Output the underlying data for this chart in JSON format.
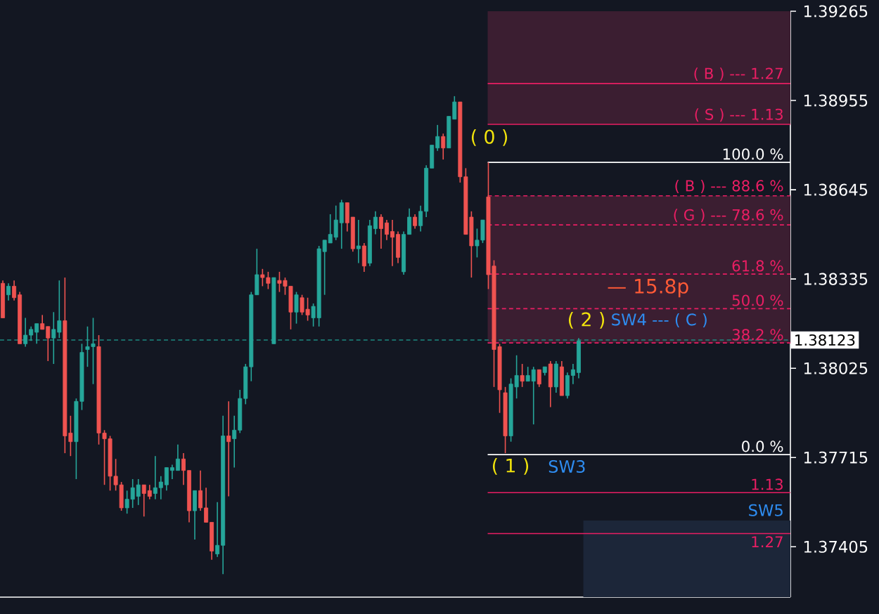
{
  "chart_data": {
    "type": "candlestick",
    "categories": [
      null,
      null,
      null,
      null,
      null,
      null,
      null,
      null,
      null,
      null,
      null,
      null,
      null,
      null,
      null,
      null,
      null,
      null,
      null,
      null,
      null,
      null,
      null,
      null,
      null,
      null,
      null,
      null,
      null,
      null,
      null,
      null,
      null,
      null,
      null,
      null,
      null,
      null,
      null,
      null,
      null,
      null,
      null,
      null,
      null,
      null,
      null,
      null,
      null,
      null,
      null,
      null,
      null,
      null,
      null,
      null,
      null,
      null,
      null,
      null,
      null,
      null,
      null,
      null,
      null,
      null,
      null,
      null,
      null,
      null,
      null,
      null,
      null,
      null,
      null,
      null,
      null,
      null,
      null,
      null,
      null,
      null,
      null,
      null,
      null,
      null,
      null,
      null,
      null,
      null,
      null,
      null,
      null,
      null,
      null,
      null,
      null,
      null,
      null,
      null,
      null,
      null,
      null,
      null,
      null,
      null,
      null,
      null,
      null,
      null,
      null,
      null,
      null,
      null,
      null,
      null,
      null,
      null,
      null,
      null,
      null,
      null,
      null,
      null,
      null,
      null,
      null,
      null,
      null,
      null,
      null,
      null,
      null,
      null,
      null,
      null,
      null,
      null,
      null,
      null
    ],
    "ohlc": [
      [
        1.3832,
        1.3833,
        1.382,
        1.382
      ],
      [
        1.3828,
        1.3832,
        1.3826,
        1.3831
      ],
      [
        1.3831,
        1.3833,
        1.3826,
        1.3827
      ],
      [
        1.3828,
        1.3829,
        1.3811,
        1.3811
      ],
      [
        1.3811,
        1.382,
        1.381,
        1.3814
      ],
      [
        1.3814,
        1.3817,
        1.3812,
        1.3816
      ],
      [
        1.3815,
        1.3818,
        1.3811,
        1.3818
      ],
      [
        1.3818,
        1.3821,
        1.3816,
        1.3816
      ],
      [
        1.3817,
        1.3817,
        1.3805,
        1.3813
      ],
      [
        1.3813,
        1.3822,
        1.3804,
        1.3816
      ],
      [
        1.3815,
        1.3833,
        1.3813,
        1.3819
      ],
      [
        1.3819,
        1.3834,
        1.3773,
        1.3779
      ],
      [
        1.378,
        1.3786,
        1.3772,
        1.3777
      ],
      [
        1.3777,
        1.3792,
        1.3764,
        1.3791
      ],
      [
        1.3791,
        1.3811,
        1.3788,
        1.3808
      ],
      [
        1.3809,
        1.3817,
        1.3803,
        1.381
      ],
      [
        1.381,
        1.382,
        1.3797,
        1.3811
      ],
      [
        1.381,
        1.3814,
        1.3776,
        1.378
      ],
      [
        1.378,
        1.3781,
        1.3762,
        1.3778
      ],
      [
        1.3778,
        1.3779,
        1.376,
        1.3765
      ],
      [
        1.3765,
        1.3771,
        1.376,
        1.3762
      ],
      [
        1.3762,
        1.3763,
        1.3753,
        1.3754
      ],
      [
        1.3754,
        1.376,
        1.3752,
        1.3757
      ],
      [
        1.3757,
        1.3764,
        1.3754,
        1.3761
      ],
      [
        1.3758,
        1.3764,
        1.3755,
        1.3762
      ],
      [
        1.3762,
        1.3762,
        1.3751,
        1.3759
      ],
      [
        1.376,
        1.3762,
        1.3757,
        1.3758
      ],
      [
        1.3759,
        1.3772,
        1.3757,
        1.3761
      ],
      [
        1.3761,
        1.3765,
        1.3757,
        1.3763
      ],
      [
        1.3762,
        1.3768,
        1.376,
        1.3768
      ],
      [
        1.3767,
        1.3769,
        1.3764,
        1.3768
      ],
      [
        1.3767,
        1.3776,
        1.3767,
        1.3771
      ],
      [
        1.3771,
        1.3773,
        1.3762,
        1.3767
      ],
      [
        1.3767,
        1.3767,
        1.3749,
        1.3753
      ],
      [
        1.3753,
        1.376,
        1.3743,
        1.376
      ],
      [
        1.376,
        1.3767,
        1.3753,
        1.3754
      ],
      [
        1.3754,
        1.3761,
        1.3749,
        1.3749
      ],
      [
        1.3749,
        1.3749,
        1.3736,
        1.3739
      ],
      [
        1.3738,
        1.3756,
        1.3737,
        1.3741
      ],
      [
        1.3741,
        1.3786,
        1.3731,
        1.3779
      ],
      [
        1.3779,
        1.3791,
        1.3758,
        1.3777
      ],
      [
        1.3778,
        1.3786,
        1.3768,
        1.3781
      ],
      [
        1.3781,
        1.3795,
        1.378,
        1.3792
      ],
      [
        1.3792,
        1.3804,
        1.379,
        1.3803
      ],
      [
        1.3803,
        1.3829,
        1.3798,
        1.3828
      ],
      [
        1.3828,
        1.3844,
        1.3828,
        1.3835
      ],
      [
        1.3835,
        1.3837,
        1.3831,
        1.3834
      ],
      [
        1.3834,
        1.3836,
        1.383,
        1.3832
      ],
      [
        1.3811,
        1.3834,
        1.3811,
        1.3834
      ],
      [
        1.3833,
        1.3836,
        1.3829,
        1.3832
      ],
      [
        1.3833,
        1.3834,
        1.3828,
        1.3831
      ],
      [
        1.3831,
        1.3831,
        1.3816,
        1.3822
      ],
      [
        1.3822,
        1.3829,
        1.3818,
        1.3828
      ],
      [
        1.3827,
        1.3828,
        1.3821,
        1.3822
      ],
      [
        1.3823,
        1.3827,
        1.3819,
        1.3821
      ],
      [
        1.382,
        1.3825,
        1.3817,
        1.3824
      ],
      [
        1.382,
        1.3845,
        1.3817,
        1.3844
      ],
      [
        1.3843,
        1.3847,
        1.3828,
        1.3847
      ],
      [
        1.3846,
        1.3856,
        1.3846,
        1.3849
      ],
      [
        1.3848,
        1.3859,
        1.3847,
        1.3854
      ],
      [
        1.3853,
        1.3861,
        1.3844,
        1.386
      ],
      [
        1.386,
        1.386,
        1.385,
        1.3853
      ],
      [
        1.3855,
        1.3855,
        1.3843,
        1.3844
      ],
      [
        1.3844,
        1.3854,
        1.3839,
        1.3845
      ],
      [
        1.3845,
        1.3846,
        1.3836,
        1.3838
      ],
      [
        1.3839,
        1.3854,
        1.3838,
        1.3852
      ],
      [
        1.3851,
        1.3857,
        1.3849,
        1.3855
      ],
      [
        1.3855,
        1.3856,
        1.3844,
        1.3851
      ],
      [
        1.3853,
        1.3854,
        1.3847,
        1.3849
      ],
      [
        1.385,
        1.3854,
        1.3838,
        1.3848
      ],
      [
        1.3849,
        1.385,
        1.3839,
        1.3841
      ],
      [
        1.3836,
        1.385,
        1.3835,
        1.3849
      ],
      [
        1.3849,
        1.3858,
        1.3849,
        1.3855
      ],
      [
        1.3855,
        1.3856,
        1.3851,
        1.3852
      ],
      [
        1.3852,
        1.3859,
        1.385,
        1.3857
      ],
      [
        1.3857,
        1.3873,
        1.3855,
        1.3872
      ],
      [
        1.3872,
        1.388,
        1.3872,
        1.388
      ],
      [
        1.3879,
        1.3887,
        1.3878,
        1.3883
      ],
      [
        1.3883,
        1.3884,
        1.3875,
        1.3879
      ],
      [
        1.3879,
        1.389,
        1.3879,
        1.389
      ],
      [
        1.3889,
        1.3897,
        1.3889,
        1.3895
      ],
      [
        1.3895,
        1.3895,
        1.3867,
        1.3869
      ],
      [
        1.3869,
        1.3872,
        1.3849,
        1.3849
      ],
      [
        1.3855,
        1.3857,
        1.3834,
        1.3845
      ],
      [
        1.3845,
        1.3851,
        1.3841,
        1.3847
      ],
      [
        1.3847,
        1.3854,
        1.3846,
        1.3854
      ],
      [
        1.3862,
        1.3874,
        1.383,
        1.3835
      ],
      [
        1.3838,
        1.384,
        1.3796,
        1.3809
      ],
      [
        1.381,
        1.3811,
        1.3787,
        1.3795
      ],
      [
        1.3794,
        1.3796,
        1.3773,
        1.3779
      ],
      [
        1.3779,
        1.3799,
        1.3777,
        1.3797
      ],
      [
        1.3796,
        1.3807,
        1.3792,
        1.38
      ],
      [
        1.38,
        1.3804,
        1.3796,
        1.3798
      ],
      [
        1.3798,
        1.3803,
        1.3798,
        1.38
      ],
      [
        1.3798,
        1.3803,
        1.3783,
        1.3802
      ],
      [
        1.3802,
        1.3802,
        1.3796,
        1.3797
      ],
      [
        1.3801,
        1.3803,
        1.38,
        1.3803
      ],
      [
        1.3804,
        1.3805,
        1.3789,
        1.3796
      ],
      [
        1.3796,
        1.3805,
        1.3794,
        1.3804
      ],
      [
        1.3803,
        1.3805,
        1.3793,
        1.3793
      ],
      [
        1.3793,
        1.3801,
        1.3792,
        1.38
      ],
      [
        1.38,
        1.3804,
        1.3797,
        1.3802
      ],
      [
        1.3801,
        1.3813,
        1.3799,
        1.3812
      ],
      null,
      null,
      null,
      null,
      null,
      null,
      null,
      null,
      null,
      null,
      null,
      null,
      null,
      null,
      null,
      null,
      null,
      null,
      null,
      null,
      null,
      null,
      null,
      null,
      null,
      null,
      null,
      null,
      null,
      null,
      null,
      null,
      null,
      null,
      null,
      null,
      null
    ],
    "colors": [
      "#ef5350",
      "#26a69a",
      "#ef5350",
      "#ef5350",
      "#26a69a",
      "#26a69a",
      "#26a69a",
      "#ef5350",
      "#ef5350",
      "#26a69a",
      "#26a69a",
      "#ef5350",
      "#ef5350",
      "#26a69a",
      "#26a69a",
      "#26a69a",
      "#26a69a",
      "#ef5350",
      "#ef5350",
      "#ef5350",
      "#ef5350",
      "#ef5350",
      "#26a69a",
      "#26a69a",
      "#26a69a",
      "#ef5350",
      "#ef5350",
      "#26a69a",
      "#26a69a",
      "#26a69a",
      "#26a69a",
      "#26a69a",
      "#ef5350",
      "#ef5350",
      "#26a69a",
      "#ef5350",
      "#ef5350",
      "#ef5350",
      "#26a69a",
      "#26a69a",
      "#ef5350",
      "#26a69a",
      "#26a69a",
      "#26a69a",
      "#26a69a",
      "#26a69a",
      "#ef5350",
      "#ef5350",
      "#26a69a",
      "#ef5350",
      "#ef5350",
      "#ef5350",
      "#26a69a",
      "#ef5350",
      "#ef5350",
      "#26a69a",
      "#26a69a",
      "#26a69a",
      "#26a69a",
      "#26a69a",
      "#26a69a",
      "#ef5350",
      "#ef5350",
      "#26a69a",
      "#ef5350",
      "#26a69a",
      "#26a69a",
      "#ef5350",
      "#ef5350",
      "#ef5350",
      "#ef5350",
      "#26a69a",
      "#26a69a",
      "#ef5350",
      "#26a69a",
      "#26a69a",
      "#26a69a",
      "#26a69a",
      "#ef5350",
      "#26a69a",
      "#26a69a",
      "#ef5350",
      "#ef5350",
      "#ef5350",
      "#26a69a",
      "#26a69a",
      "#ef5350",
      "#ef5350",
      "#ef5350",
      "#ef5350",
      "#26a69a",
      "#26a69a",
      "#ef5350",
      "#26a69a",
      "#26a69a",
      "#ef5350",
      "#26a69a",
      "#ef5350",
      "#26a69a",
      "#ef5350",
      "#26a69a",
      "#26a69a",
      "#26a69a",
      null,
      null,
      null,
      null,
      null,
      null,
      null,
      null,
      null,
      null,
      null,
      null,
      null,
      null,
      null,
      null,
      null,
      null,
      null,
      null,
      null,
      null,
      null,
      null,
      null,
      null,
      null,
      null,
      null,
      null,
      null,
      null,
      null,
      null,
      null,
      null,
      null
    ],
    "ylim": [
      1.3723,
      1.39265
    ],
    "yticks": [
      1.37405,
      1.37715,
      1.38025,
      1.38335,
      1.38645,
      1.38955,
      1.39265
    ],
    "tick_labels": "y",
    "bands": [
      {
        "axis": "y",
        "from": 1.38872,
        "to": 1.39265,
        "color": "#3b1e31"
      },
      {
        "axis": "y",
        "from": 1.38113,
        "to": 1.38624,
        "color": "#3b1e31"
      },
      {
        "axis": "y",
        "from": 1.3723,
        "to": 1.37496,
        "color": "#1c2639"
      }
    ],
    "ref_lines": [
      {
        "axis": "y",
        "value": 1.39014,
        "label": "( B )   --- 1.27",
        "color": "#e91e63"
      },
      {
        "axis": "y",
        "value": 1.38872,
        "label": "( S )   --- 1.13",
        "color": "#e91e63"
      },
      {
        "axis": "y",
        "value": 1.3874,
        "color": "#ffffff"
      },
      {
        "axis": "y",
        "value": 1.38624,
        "label": "( B ) --- 88.6 %",
        "color": "#e91e63",
        "line_style": "dashed"
      },
      {
        "axis": "y",
        "value": 1.38523,
        "label": "( G ) --- 78.6 %",
        "color": "#e91e63",
        "line_style": "dashed"
      },
      {
        "axis": "y",
        "value": 1.38352,
        "color": "#e91e63",
        "line_style": "dashed"
      },
      {
        "axis": "y",
        "value": 1.38232,
        "color": "#e91e63",
        "line_style": "dashed"
      },
      {
        "axis": "y",
        "value": 1.38113,
        "color": "#e91e63",
        "line_style": "dashed"
      },
      {
        "axis": "y",
        "value": 1.37725,
        "color": "#ffffff"
      },
      {
        "axis": "y",
        "value": 1.37593,
        "color": "#e91e63"
      },
      {
        "axis": "y",
        "value": 1.37451,
        "color": "#e91e63"
      },
      {
        "axis": "y",
        "value": 1.38123,
        "label": "1.38123",
        "color": "#1e8a80",
        "line_style": "dashed"
      }
    ],
    "annotations": [
      "( 0 )",
      "( 1 )",
      "SW3",
      "( 2 )",
      "SW4 --- ( C )",
      "— 15.8p",
      "SW5",
      "100.0 %",
      "61.8 %",
      "50.0 %",
      "38.2 %",
      "0.0 %",
      "1.13",
      "1.27"
    ]
  }
}
